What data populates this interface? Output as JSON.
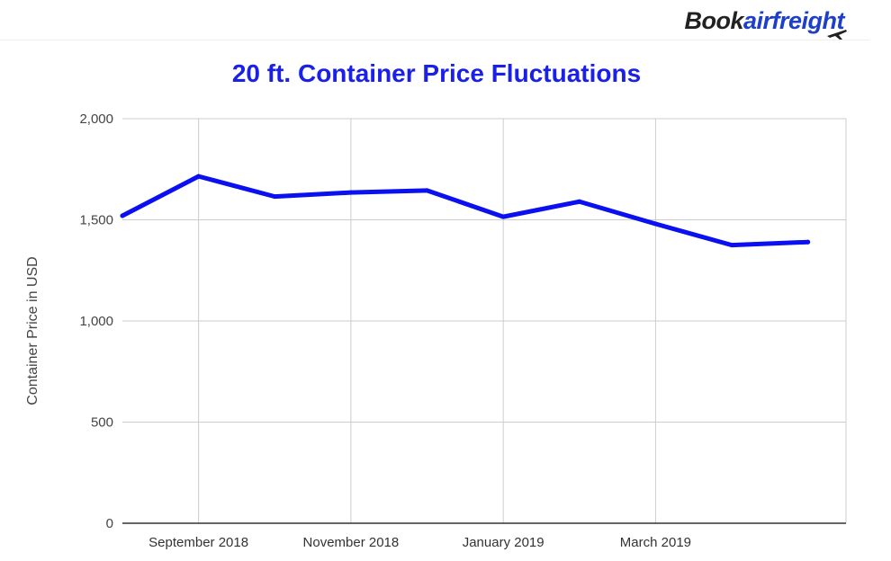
{
  "brand": {
    "part1": "Book",
    "part2": "airfreight",
    "icon": "airplane-icon"
  },
  "colors": {
    "line": "#0a10f0",
    "title": "#1a20e8",
    "grid": "#cccccc",
    "brand_accent": "#1e40c8"
  },
  "chart_data": {
    "type": "line",
    "title": "20 ft. Container Price Fluctuations",
    "ylabel": "Container Price  in USD",
    "xlabel": "",
    "ylim": [
      0,
      2000
    ],
    "yticks": [
      0,
      500,
      1000,
      1500,
      2000
    ],
    "ytick_labels": [
      "0",
      "500",
      "1,000",
      "1,500",
      "2,000"
    ],
    "x_tick_labels": [
      {
        "label": "September 2018",
        "x": "2018-09"
      },
      {
        "label": "November 2018",
        "x": "2018-11"
      },
      {
        "label": "January 2019",
        "x": "2019-01"
      },
      {
        "label": "March 2019",
        "x": "2019-03"
      }
    ],
    "x": [
      "2018-08",
      "2018-09",
      "2018-10",
      "2018-11",
      "2018-12",
      "2019-01",
      "2019-02",
      "2019-03",
      "2019-04",
      "2019-05"
    ],
    "series": [
      {
        "values": [
          1520,
          1715,
          1615,
          1635,
          1645,
          1515,
          1590,
          1480,
          1375,
          1390
        ]
      }
    ],
    "grid": true,
    "legend": "none"
  }
}
